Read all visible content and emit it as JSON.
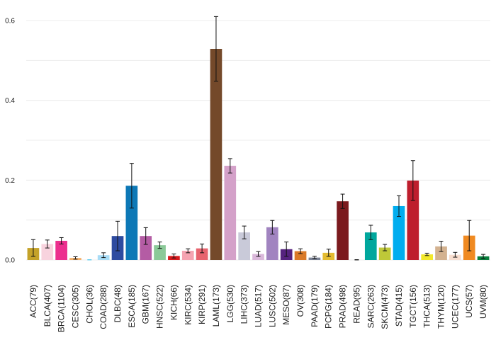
{
  "chart_data": {
    "type": "bar",
    "title": "",
    "xlabel": "",
    "ylabel": "",
    "ylim": [
      0,
      0.65
    ],
    "yticks": [
      0.0,
      0.2,
      0.4,
      0.6
    ],
    "ytick_labels": [
      "0.0",
      "0.2",
      "0.4",
      "0.6"
    ],
    "grid": true,
    "categories": [
      "ACC(79)",
      "BLCA(407)",
      "BRCA(1104)",
      "CESC(305)",
      "CHOL(36)",
      "COAD(288)",
      "DLBC(48)",
      "ESCA(185)",
      "GBM(167)",
      "HNSC(522)",
      "KICH(66)",
      "KIRC(534)",
      "KIRP(291)",
      "LAML(173)",
      "LGG(530)",
      "LIHC(373)",
      "LUAD(517)",
      "LUSC(502)",
      "MESO(87)",
      "OV(308)",
      "PAAD(179)",
      "PCPG(184)",
      "PRAD(498)",
      "READ(95)",
      "SARC(263)",
      "SKCM(473)",
      "STAD(415)",
      "TGCT(156)",
      "THCA(513)",
      "THYM(120)",
      "UCEC(177)",
      "UCS(57)",
      "UVM(80)"
    ],
    "values": [
      0.03,
      0.04,
      0.048,
      0.005,
      0.0,
      0.012,
      0.06,
      0.186,
      0.06,
      0.037,
      0.01,
      0.023,
      0.029,
      0.529,
      0.236,
      0.069,
      0.015,
      0.082,
      0.027,
      0.022,
      0.006,
      0.018,
      0.147,
      0.0,
      0.069,
      0.031,
      0.135,
      0.199,
      0.014,
      0.034,
      0.013,
      0.061,
      0.009
    ],
    "errors": [
      0.021,
      0.01,
      0.008,
      0.003,
      0.0,
      0.006,
      0.037,
      0.056,
      0.021,
      0.008,
      0.005,
      0.005,
      0.011,
      0.081,
      0.018,
      0.016,
      0.006,
      0.017,
      0.018,
      0.006,
      0.003,
      0.009,
      0.018,
      0.0,
      0.018,
      0.008,
      0.026,
      0.05,
      0.003,
      0.013,
      0.006,
      0.038,
      0.005
    ],
    "colors": [
      "#C4A229",
      "#F8D3DE",
      "#EC2F8E",
      "#F3AF69",
      "#66CCEE",
      "#A8DCF6",
      "#2E4BA0",
      "#0D78B6",
      "#B45CA4",
      "#8BC998",
      "#D7191C",
      "#F5A3B1",
      "#E7636E",
      "#74492A",
      "#D4A1C9",
      "#C9CAD9",
      "#DAB8DA",
      "#A184C0",
      "#56237F",
      "#DA7A28",
      "#7A8295",
      "#E4BC32",
      "#7B1A1E",
      "#222222",
      "#00A79D",
      "#BFC838",
      "#00ADEF",
      "#BE1E2D",
      "#F2E82B",
      "#D3B290",
      "#F8DECF",
      "#F08A21",
      "#087E3C"
    ]
  }
}
